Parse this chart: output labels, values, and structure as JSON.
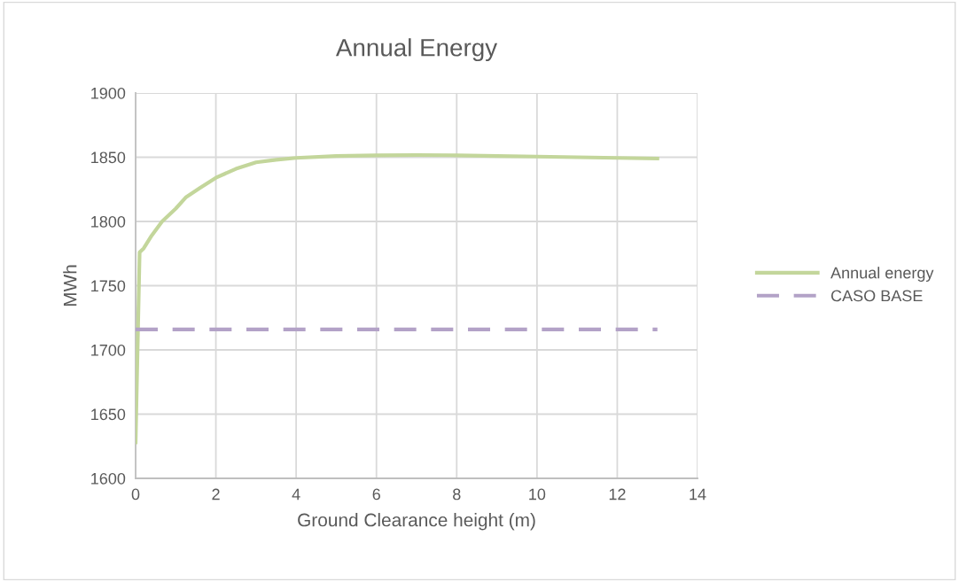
{
  "chart_data": {
    "type": "line",
    "title": "Annual Energy",
    "xlabel": "Ground Clearance height (m)",
    "ylabel": "MWh",
    "xlim": [
      0,
      14
    ],
    "xticks": [
      0,
      2,
      4,
      6,
      8,
      10,
      12,
      14
    ],
    "ylim": [
      1600,
      1900
    ],
    "yticks": [
      1600,
      1650,
      1700,
      1750,
      1800,
      1850,
      1900
    ],
    "grid": true,
    "legend": "right",
    "marker": "none",
    "series": [
      {
        "name": "Annual energy",
        "color": "#c3d69b",
        "line_style": "solid",
        "x": [
          0,
          0.1,
          0.2,
          0.4,
          0.66,
          1.0,
          1.26,
          1.6,
          2,
          2.5,
          3,
          3.5,
          4,
          5,
          6,
          7,
          8,
          9,
          10,
          11,
          12,
          13
        ],
        "values": [
          1628,
          1776,
          1779,
          1789,
          1800,
          1810,
          1819,
          1826,
          1834,
          1841,
          1846,
          1848,
          1849.5,
          1851,
          1851.5,
          1851.7,
          1851.5,
          1851,
          1850.5,
          1850,
          1849.5,
          1849
        ]
      },
      {
        "name": "CASO BASE",
        "color": "#b3a2c7",
        "line_style": "dashed",
        "x": [
          0,
          13
        ],
        "values": [
          1716,
          1716
        ]
      }
    ]
  }
}
